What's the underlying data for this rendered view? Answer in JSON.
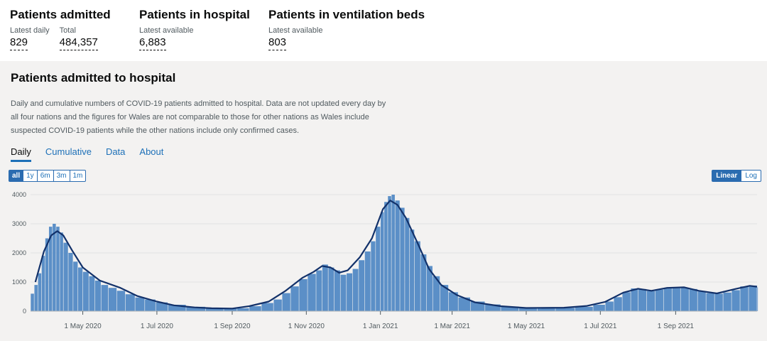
{
  "headline": [
    {
      "title": "Patients admitted",
      "stats": [
        {
          "label": "Latest daily",
          "value": "829"
        },
        {
          "label": "Total",
          "value": "484,357"
        }
      ]
    },
    {
      "title": "Patients in hospital",
      "stats": [
        {
          "label": "Latest available",
          "value": "6,883"
        }
      ]
    },
    {
      "title": "Patients in ventilation beds",
      "stats": [
        {
          "label": "Latest available",
          "value": "803"
        }
      ]
    }
  ],
  "card": {
    "title": "Patients admitted to hospital",
    "description": "Daily and cumulative numbers of COVID-19 patients admitted to hospital. Data are not updated every day by all four nations and the figures for Wales are not comparable to those for other nations as Wales include suspected COVID-19 patients while the other nations include only confirmed cases.",
    "tabs": [
      "Daily",
      "Cumulative",
      "Data",
      "About"
    ],
    "active_tab": "Daily",
    "range_buttons": [
      "all",
      "1y",
      "6m",
      "3m",
      "1m"
    ],
    "active_range": "all",
    "scale_buttons": [
      "Linear",
      "Log"
    ],
    "active_scale": "Linear"
  },
  "colors": {
    "bar": "#5b8fc7",
    "line": "#12316a",
    "accent": "#2b6cb0",
    "grid": "#e2e2e2"
  },
  "chart_data": {
    "type": "bar",
    "title": "",
    "xlabel": "",
    "ylabel": "",
    "x_range": [
      "2020-03-19",
      "2021-11-07"
    ],
    "ylim": [
      0,
      4000
    ],
    "y_ticks": [
      0,
      1000,
      2000,
      3000,
      4000
    ],
    "x_ticks": [
      {
        "date": "2020-05-01",
        "label": "1 May 2020"
      },
      {
        "date": "2020-07-01",
        "label": "1 Jul 2020"
      },
      {
        "date": "2020-09-01",
        "label": "1 Sep 2020"
      },
      {
        "date": "2020-11-01",
        "label": "1 Nov 2020"
      },
      {
        "date": "2021-01-01",
        "label": "1 Jan 2021"
      },
      {
        "date": "2021-03-01",
        "label": "1 Mar 2021"
      },
      {
        "date": "2021-05-01",
        "label": "1 May 2021"
      },
      {
        "date": "2021-07-01",
        "label": "1 Jul 2021"
      },
      {
        "date": "2021-09-01",
        "label": "1 Sep 2021"
      }
    ],
    "grid": true,
    "series": [
      {
        "kind": "bar",
        "points": [
          [
            "2020-03-19",
            600
          ],
          [
            "2020-03-22",
            900
          ],
          [
            "2020-03-25",
            1300
          ],
          [
            "2020-03-28",
            1900
          ],
          [
            "2020-03-31",
            2500
          ],
          [
            "2020-04-03",
            2900
          ],
          [
            "2020-04-06",
            3000
          ],
          [
            "2020-04-09",
            2900
          ],
          [
            "2020-04-12",
            2700
          ],
          [
            "2020-04-15",
            2350
          ],
          [
            "2020-04-19",
            2000
          ],
          [
            "2020-04-23",
            1700
          ],
          [
            "2020-04-27",
            1500
          ],
          [
            "2020-05-01",
            1350
          ],
          [
            "2020-05-06",
            1200
          ],
          [
            "2020-05-11",
            1050
          ],
          [
            "2020-05-16",
            900
          ],
          [
            "2020-05-22",
            800
          ],
          [
            "2020-05-29",
            700
          ],
          [
            "2020-06-05",
            580
          ],
          [
            "2020-06-13",
            470
          ],
          [
            "2020-06-21",
            400
          ],
          [
            "2020-06-30",
            300
          ],
          [
            "2020-07-10",
            220
          ],
          [
            "2020-07-25",
            150
          ],
          [
            "2020-08-10",
            110
          ],
          [
            "2020-08-25",
            90
          ],
          [
            "2020-09-05",
            100
          ],
          [
            "2020-09-15",
            170
          ],
          [
            "2020-09-25",
            280
          ],
          [
            "2020-10-05",
            400
          ],
          [
            "2020-10-12",
            620
          ],
          [
            "2020-10-19",
            850
          ],
          [
            "2020-10-26",
            1100
          ],
          [
            "2020-11-02",
            1280
          ],
          [
            "2020-11-09",
            1400
          ],
          [
            "2020-11-14",
            1600
          ],
          [
            "2020-11-19",
            1500
          ],
          [
            "2020-11-24",
            1400
          ],
          [
            "2020-11-29",
            1250
          ],
          [
            "2020-12-04",
            1300
          ],
          [
            "2020-12-09",
            1450
          ],
          [
            "2020-12-14",
            1750
          ],
          [
            "2020-12-19",
            2050
          ],
          [
            "2020-12-24",
            2400
          ],
          [
            "2020-12-28",
            2900
          ],
          [
            "2021-01-01",
            3400
          ],
          [
            "2021-01-04",
            3750
          ],
          [
            "2021-01-07",
            3950
          ],
          [
            "2021-01-10",
            4000
          ],
          [
            "2021-01-13",
            3800
          ],
          [
            "2021-01-17",
            3550
          ],
          [
            "2021-01-21",
            3200
          ],
          [
            "2021-01-25",
            2800
          ],
          [
            "2021-01-29",
            2400
          ],
          [
            "2021-02-03",
            1950
          ],
          [
            "2021-02-08",
            1550
          ],
          [
            "2021-02-13",
            1200
          ],
          [
            "2021-02-19",
            900
          ],
          [
            "2021-02-26",
            650
          ],
          [
            "2021-03-06",
            470
          ],
          [
            "2021-03-16",
            330
          ],
          [
            "2021-03-28",
            230
          ],
          [
            "2021-04-10",
            160
          ],
          [
            "2021-04-25",
            120
          ],
          [
            "2021-05-10",
            100
          ],
          [
            "2021-05-25",
            110
          ],
          [
            "2021-06-10",
            150
          ],
          [
            "2021-06-25",
            220
          ],
          [
            "2021-07-05",
            330
          ],
          [
            "2021-07-12",
            480
          ],
          [
            "2021-07-19",
            650
          ],
          [
            "2021-07-26",
            780
          ],
          [
            "2021-08-01",
            760
          ],
          [
            "2021-08-08",
            690
          ],
          [
            "2021-08-15",
            740
          ],
          [
            "2021-08-22",
            800
          ],
          [
            "2021-08-29",
            790
          ],
          [
            "2021-09-05",
            800
          ],
          [
            "2021-09-12",
            760
          ],
          [
            "2021-09-19",
            680
          ],
          [
            "2021-09-26",
            620
          ],
          [
            "2021-10-03",
            600
          ],
          [
            "2021-10-10",
            640
          ],
          [
            "2021-10-17",
            720
          ],
          [
            "2021-10-24",
            850
          ],
          [
            "2021-10-31",
            880
          ],
          [
            "2021-11-07",
            820
          ]
        ]
      },
      {
        "kind": "line",
        "points": [
          [
            "2020-03-23",
            1000
          ],
          [
            "2020-03-30",
            2050
          ],
          [
            "2020-04-05",
            2600
          ],
          [
            "2020-04-10",
            2750
          ],
          [
            "2020-04-15",
            2600
          ],
          [
            "2020-04-22",
            2100
          ],
          [
            "2020-05-01",
            1500
          ],
          [
            "2020-05-15",
            1050
          ],
          [
            "2020-06-01",
            800
          ],
          [
            "2020-06-15",
            520
          ],
          [
            "2020-07-01",
            330
          ],
          [
            "2020-07-15",
            200
          ],
          [
            "2020-08-01",
            130
          ],
          [
            "2020-08-15",
            100
          ],
          [
            "2020-09-01",
            90
          ],
          [
            "2020-09-15",
            170
          ],
          [
            "2020-10-01",
            330
          ],
          [
            "2020-10-15",
            700
          ],
          [
            "2020-10-29",
            1150
          ],
          [
            "2020-11-07",
            1350
          ],
          [
            "2020-11-14",
            1550
          ],
          [
            "2020-11-21",
            1500
          ],
          [
            "2020-11-28",
            1320
          ],
          [
            "2020-12-05",
            1400
          ],
          [
            "2020-12-15",
            1850
          ],
          [
            "2020-12-25",
            2500
          ],
          [
            "2021-01-03",
            3500
          ],
          [
            "2021-01-09",
            3800
          ],
          [
            "2021-01-15",
            3650
          ],
          [
            "2021-01-22",
            3200
          ],
          [
            "2021-02-01",
            2300
          ],
          [
            "2021-02-10",
            1450
          ],
          [
            "2021-02-20",
            900
          ],
          [
            "2021-03-05",
            550
          ],
          [
            "2021-03-20",
            300
          ],
          [
            "2021-04-10",
            170
          ],
          [
            "2021-05-01",
            110
          ],
          [
            "2021-06-01",
            120
          ],
          [
            "2021-06-20",
            180
          ],
          [
            "2021-07-05",
            320
          ],
          [
            "2021-07-20",
            640
          ],
          [
            "2021-08-01",
            770
          ],
          [
            "2021-08-12",
            700
          ],
          [
            "2021-08-25",
            800
          ],
          [
            "2021-09-08",
            820
          ],
          [
            "2021-09-20",
            700
          ],
          [
            "2021-10-05",
            610
          ],
          [
            "2021-10-20",
            760
          ],
          [
            "2021-11-01",
            870
          ],
          [
            "2021-11-07",
            840
          ]
        ]
      }
    ]
  }
}
